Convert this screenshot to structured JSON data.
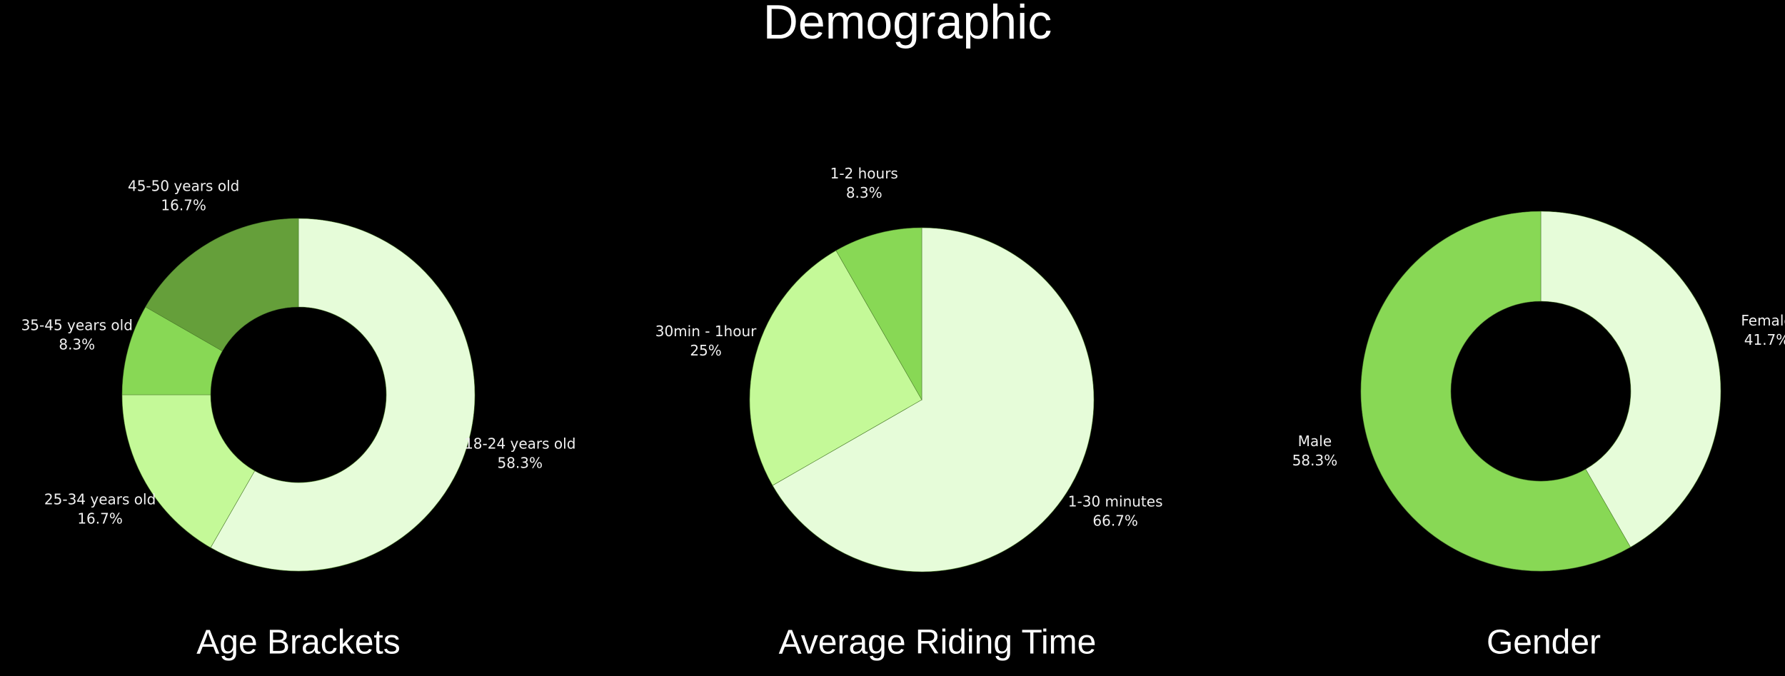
{
  "title": "Demographic",
  "chart_data": [
    {
      "type": "donut",
      "title": "Age Brackets",
      "categories": [
        "18-24 years old",
        "25-34 years old",
        "35-45 years old",
        "45-50 years old"
      ],
      "values": [
        58.3,
        16.7,
        8.3,
        16.7
      ],
      "value_labels": [
        "58.3%",
        "16.7%",
        "8.3%",
        "16.7%"
      ],
      "colors": [
        "#e6fcd9",
        "#c4f998",
        "#88d855",
        "#659f3a"
      ]
    },
    {
      "type": "pie",
      "title": "Average Riding Time",
      "categories": [
        "1-30 minutes",
        "30min - 1hour",
        "1-2 hours"
      ],
      "values": [
        66.7,
        25,
        8.3
      ],
      "value_labels": [
        "66.7%",
        "25%",
        "8.3%"
      ],
      "colors": [
        "#e6fcd9",
        "#c4f998",
        "#88d855"
      ]
    },
    {
      "type": "donut",
      "title": "Gender",
      "categories": [
        "Female",
        "Male"
      ],
      "values": [
        41.7,
        58.3
      ],
      "value_labels": [
        "41.7%",
        "58.3%"
      ],
      "colors": [
        "#e6fcd9",
        "#88d855"
      ]
    }
  ]
}
